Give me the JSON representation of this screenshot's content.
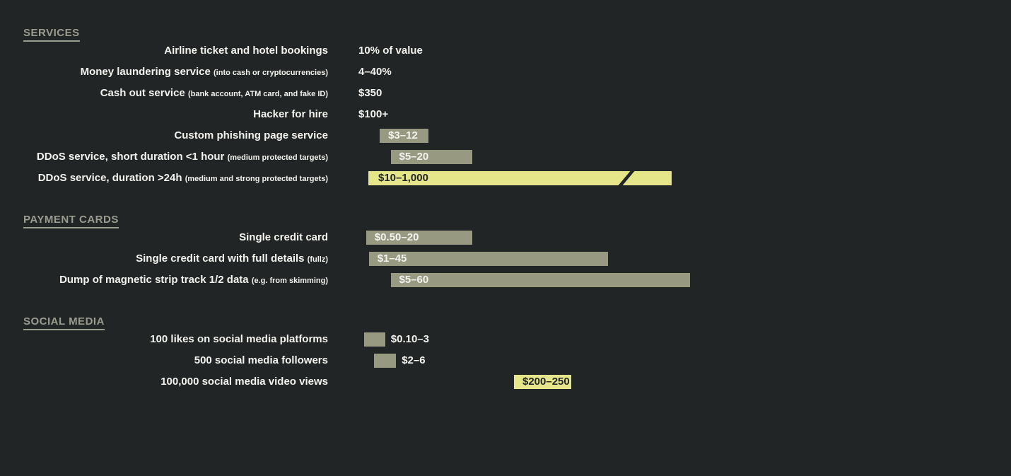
{
  "chart_data": {
    "type": "bar",
    "orientation": "horizontal",
    "title": "",
    "xlabel": "",
    "ylabel": "",
    "grid": false,
    "legend": "none",
    "colors": {
      "background": "#222526",
      "bar": "#979a80",
      "highlight": "#e5e58a",
      "section_title": "#9a9c8f",
      "text": "#f2f2ee",
      "dark_text": "#222526"
    },
    "sections": [
      {
        "title": "SERVICES",
        "items": [
          {
            "label": "Airline ticket and hotel bookings",
            "note": "",
            "price": "10% of value",
            "range": null
          },
          {
            "label": "Money laundering service",
            "note": "(into cash or cryptocurrencies)",
            "price": "4–40%",
            "range": null
          },
          {
            "label": "Cash out service",
            "note": "(bank account, ATM card, and fake ID)",
            "price": "$350",
            "range": null
          },
          {
            "label": "Hacker for hire",
            "note": "",
            "price": "$100+",
            "range": null
          },
          {
            "label": "Custom phishing page service",
            "note": "",
            "price": "$3–12",
            "range": [
              3,
              12
            ]
          },
          {
            "label": "DDoS service, short duration <1 hour",
            "note": "(medium protected targets)",
            "price": "$5–20",
            "range": [
              5,
              20
            ]
          },
          {
            "label": "DDoS service, duration >24h",
            "note": "(medium and strong protected targets)",
            "price": "$10–1,000",
            "range": [
              10,
              1000
            ],
            "highlight": true,
            "axis_break": true
          }
        ]
      },
      {
        "title": "PAYMENT CARDS",
        "items": [
          {
            "label": "Single credit card",
            "note": "",
            "price": "$0.50–20",
            "range": [
              0.5,
              20
            ]
          },
          {
            "label": "Single credit card with full details",
            "note": "(fullz)",
            "price": "$1–45",
            "range": [
              1,
              45
            ]
          },
          {
            "label": "Dump of magnetic strip track 1/2 data",
            "note": "(e.g. from skimming)",
            "price": "$5–60",
            "range": [
              5,
              60
            ]
          }
        ]
      },
      {
        "title": "SOCIAL MEDIA",
        "items": [
          {
            "label": "100 likes on social media platforms",
            "note": "",
            "price": "$0.10–3",
            "range": [
              0.1,
              3
            ]
          },
          {
            "label": "500 social media followers",
            "note": "",
            "price": "$2–6",
            "range": [
              2,
              6
            ]
          },
          {
            "label": "100,000 social media video views",
            "note": "",
            "price": "$200–250",
            "range": [
              200,
              250
            ],
            "highlight": true
          }
        ]
      }
    ]
  }
}
